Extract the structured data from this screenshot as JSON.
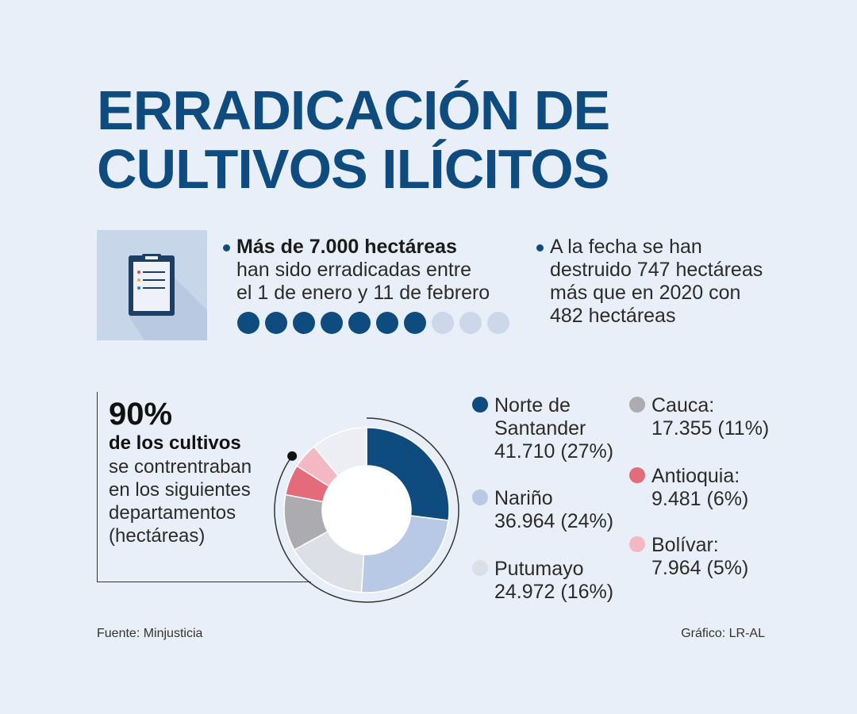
{
  "title": {
    "line1": "ERRADICACIÓN DE",
    "line2": "CULTIVOS ILÍCITOS"
  },
  "stat_left": {
    "bold": "Más de 7.000 hectáreas",
    "line2": "han sido erradicadas entre",
    "line3": "el 1 de enero y 11 de febrero"
  },
  "stat_right": {
    "line1": "A la fecha se han",
    "line2": "destruido 747 hectáreas",
    "line3": "más que en 2020 con",
    "line4": "482 hectáreas"
  },
  "progress_dots": {
    "filled": 7,
    "total": 10,
    "filled_color": "#0e4c80",
    "empty_color": "#ccd7e9"
  },
  "share_block": {
    "percent": "90%",
    "subtitle": "de los cultivos",
    "line1": "se contrentraban",
    "line2": "en los siguientes",
    "line3": "departamentos",
    "line4": "(hectáreas)"
  },
  "chart_data": {
    "type": "pie",
    "donut": true,
    "categories": [
      "Norte de Santander",
      "Nariño",
      "Putumayo",
      "Cauca",
      "Antioquia",
      "Bolívar"
    ],
    "values": [
      41710,
      36964,
      24972,
      17355,
      9481,
      7964
    ],
    "percent_labels": [
      "27%",
      "24%",
      "16%",
      "11%",
      "6%",
      "5%"
    ],
    "colors": [
      "#0e4c80",
      "#b8c9e6",
      "#dcdfe6",
      "#ababb0",
      "#e56a7a",
      "#f3b8c1",
      "#eceef3"
    ],
    "remainder_color": "#eceef3",
    "legend": [
      {
        "line1": "Norte de",
        "line2": "Santander",
        "line3": "41.710 (27%)"
      },
      {
        "line1": "Nariño",
        "line2": "36.964 (24%)"
      },
      {
        "line1": "Putumayo",
        "line2": "24.972 (16%)"
      },
      {
        "line1": "Cauca:",
        "line2": "17.355 (11%)"
      },
      {
        "line1": "Antioquia:",
        "line2": "9.481 (6%)"
      },
      {
        "line1": "Bolívar:",
        "line2": "7.964 (5%)"
      }
    ]
  },
  "footer": {
    "source": "Fuente: Minjusticia",
    "credit": "Gráfico: LR-AL"
  },
  "icons": {
    "stat_icon": "clipboard-icon"
  }
}
